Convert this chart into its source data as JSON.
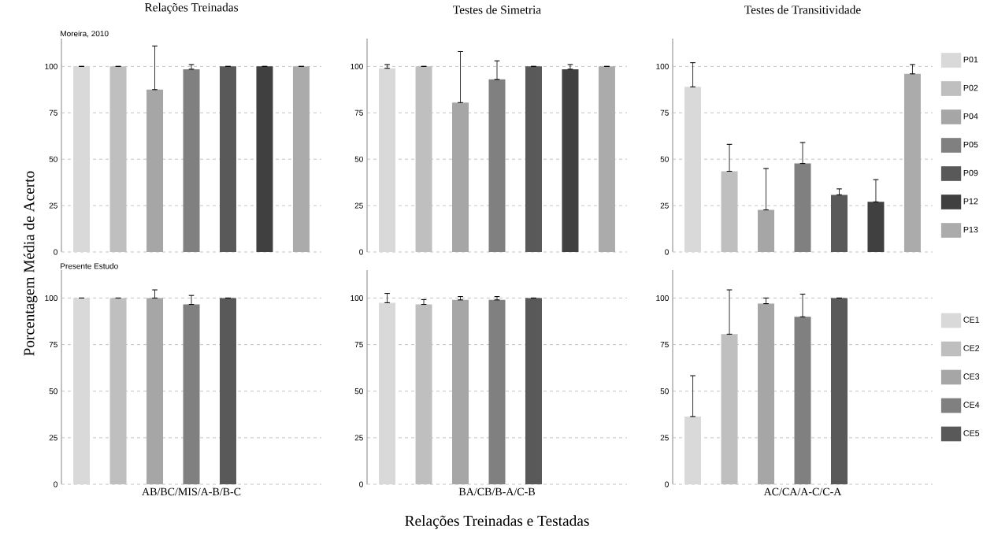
{
  "chart_data": [
    {
      "type": "bar",
      "title": "Relações Treinadas",
      "ylabel": "Porcentagem Média de Acerto",
      "annotations": [
        "Moreira, 2010"
      ],
      "categories": [
        null
      ],
      "ylim": [
        0,
        115
      ],
      "yticks": [
        0,
        25,
        50,
        75,
        100
      ],
      "grid": "y",
      "series": [
        {
          "color": "#d9d9d9",
          "values": [
            100
          ],
          "errors": [
            [
              100,
              100
            ]
          ]
        },
        {
          "color": "#bfbfbf",
          "values": [
            100
          ],
          "errors": [
            [
              100,
              100
            ]
          ]
        },
        {
          "color": "#a6a6a6",
          "values": [
            87.5
          ],
          "errors": [
            [
              87.5,
              111
            ]
          ]
        },
        {
          "color": "#808080",
          "values": [
            98.5
          ],
          "errors": [
            [
              98.5,
              101
            ]
          ]
        },
        {
          "color": "#595959",
          "values": [
            100
          ],
          "errors": [
            [
              100,
              100
            ]
          ]
        },
        {
          "color": "#404040",
          "values": [
            100
          ],
          "errors": [
            [
              100,
              100
            ]
          ]
        },
        {
          "color": "#ababab",
          "values": [
            100
          ],
          "errors": [
            [
              100,
              100
            ]
          ]
        }
      ]
    },
    {
      "type": "bar",
      "title": "Testes de Simetria",
      "categories": [
        null
      ],
      "ylim": [
        0,
        115
      ],
      "yticks": [
        0,
        25,
        50,
        75,
        100
      ],
      "grid": "y",
      "series": [
        {
          "color": "#d9d9d9",
          "values": [
            99
          ],
          "errors": [
            [
              99,
              101
            ]
          ]
        },
        {
          "color": "#bfbfbf",
          "values": [
            100
          ],
          "errors": [
            [
              100,
              100
            ]
          ]
        },
        {
          "color": "#a6a6a6",
          "values": [
            80.5
          ],
          "errors": [
            [
              80.5,
              108
            ]
          ]
        },
        {
          "color": "#808080",
          "values": [
            93
          ],
          "errors": [
            [
              93,
              103
            ]
          ]
        },
        {
          "color": "#595959",
          "values": [
            100
          ],
          "errors": [
            [
              100,
              100
            ]
          ]
        },
        {
          "color": "#404040",
          "values": [
            98.5
          ],
          "errors": [
            [
              98.5,
              101
            ]
          ]
        },
        {
          "color": "#ababab",
          "values": [
            100
          ],
          "errors": [
            [
              100,
              100
            ]
          ]
        }
      ]
    },
    {
      "type": "bar",
      "title": "Testes de Transitividade",
      "categories": [
        null
      ],
      "ylim": [
        0,
        115
      ],
      "yticks": [
        0,
        25,
        50,
        75,
        100
      ],
      "grid": "y",
      "legend": "right",
      "series": [
        {
          "name": "P01",
          "color": "#d9d9d9",
          "values": [
            89
          ],
          "errors": [
            [
              89,
              102
            ]
          ]
        },
        {
          "name": "P02",
          "color": "#bfbfbf",
          "values": [
            43.5
          ],
          "errors": [
            [
              43.5,
              58
            ]
          ]
        },
        {
          "name": "P04",
          "color": "#a6a6a6",
          "values": [
            22.7
          ],
          "errors": [
            [
              22.7,
              45
            ]
          ]
        },
        {
          "name": "P05",
          "color": "#808080",
          "values": [
            47.7
          ],
          "errors": [
            [
              47.7,
              59
            ]
          ]
        },
        {
          "name": "P09",
          "color": "#595959",
          "values": [
            30.8
          ],
          "errors": [
            [
              30.8,
              34
            ]
          ]
        },
        {
          "name": "P12",
          "color": "#404040",
          "values": [
            27
          ],
          "errors": [
            [
              27,
              39
            ]
          ]
        },
        {
          "name": "P13",
          "color": "#ababab",
          "values": [
            96
          ],
          "errors": [
            [
              96,
              101
            ]
          ]
        }
      ]
    },
    {
      "type": "bar",
      "annotations": [
        "Presente Estudo"
      ],
      "categories": [
        "AB/BC/MIS/A-B/B-C"
      ],
      "ylim": [
        0,
        115
      ],
      "yticks": [
        0,
        25,
        50,
        75,
        100
      ],
      "grid": "y",
      "series": [
        {
          "color": "#d9d9d9",
          "values": [
            100
          ],
          "errors": [
            [
              100,
              100
            ]
          ]
        },
        {
          "color": "#bfbfbf",
          "values": [
            100
          ],
          "errors": [
            [
              100,
              100
            ]
          ]
        },
        {
          "color": "#a6a6a6",
          "values": [
            100
          ],
          "errors": [
            [
              100,
              104.4
            ]
          ]
        },
        {
          "color": "#808080",
          "values": [
            96.6
          ],
          "errors": [
            [
              96.6,
              101.4
            ]
          ]
        },
        {
          "color": "#595959",
          "values": [
            100
          ],
          "errors": [
            [
              100,
              100
            ]
          ]
        }
      ]
    },
    {
      "type": "bar",
      "xlabel": "Relações Treinadas e Testadas",
      "categories": [
        "BA/CB/B-A/C-B"
      ],
      "ylim": [
        0,
        115
      ],
      "yticks": [
        0,
        25,
        50,
        75,
        100
      ],
      "grid": "y",
      "series": [
        {
          "color": "#d9d9d9",
          "values": [
            97.5
          ],
          "errors": [
            [
              97.5,
              102.5
            ]
          ]
        },
        {
          "color": "#bfbfbf",
          "values": [
            96.6
          ],
          "errors": [
            [
              96.6,
              99.2
            ]
          ]
        },
        {
          "color": "#a6a6a6",
          "values": [
            99
          ],
          "errors": [
            [
              99,
              100.8
            ]
          ]
        },
        {
          "color": "#808080",
          "values": [
            99
          ],
          "errors": [
            [
              99,
              100.8
            ]
          ]
        },
        {
          "color": "#595959",
          "values": [
            100
          ],
          "errors": [
            [
              100,
              100
            ]
          ]
        }
      ]
    },
    {
      "type": "bar",
      "categories": [
        "AC/CA/A-C/C-A"
      ],
      "ylim": [
        0,
        115
      ],
      "yticks": [
        0,
        25,
        50,
        75,
        100
      ],
      "grid": "y",
      "legend": "right",
      "series": [
        {
          "name": "CE1",
          "color": "#d9d9d9",
          "values": [
            36.4
          ],
          "errors": [
            [
              36.4,
              58.3
            ]
          ]
        },
        {
          "name": "CE2",
          "color": "#bfbfbf",
          "values": [
            80.6
          ],
          "errors": [
            [
              80.6,
              104.4
            ]
          ]
        },
        {
          "name": "CE3",
          "color": "#a6a6a6",
          "values": [
            97
          ],
          "errors": [
            [
              97,
              100
            ]
          ]
        },
        {
          "name": "CE4",
          "color": "#808080",
          "values": [
            89.9
          ],
          "errors": [
            [
              89.9,
              102.1
            ]
          ]
        },
        {
          "name": "CE5",
          "color": "#595959",
          "values": [
            100
          ],
          "errors": [
            [
              100,
              100
            ]
          ]
        }
      ]
    }
  ]
}
